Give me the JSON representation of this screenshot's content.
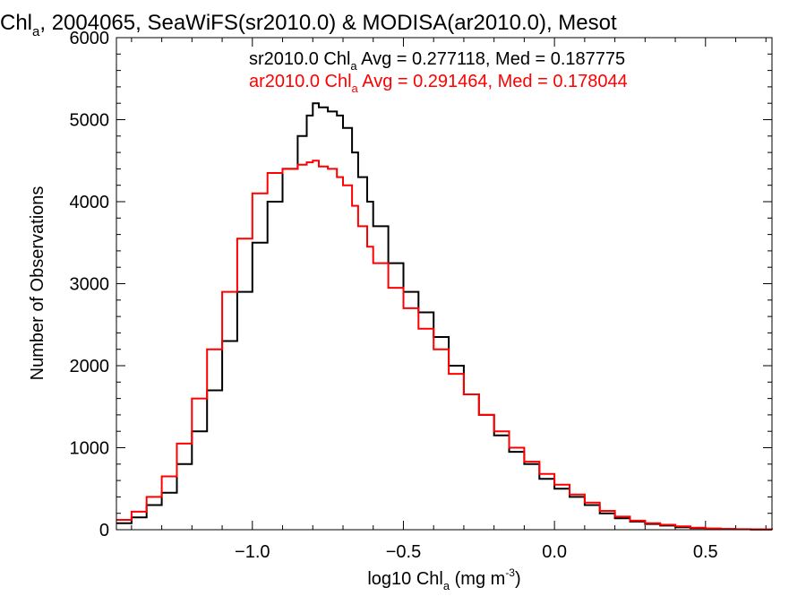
{
  "chart_data": {
    "type": "line",
    "title_main": "Chl",
    "title_sub": "a",
    "title_rest": ", 2004065, SeaWiFS(sr2010.0) & MODISA(ar2010.0), Mesot",
    "xlabel_main": "log10 Chl",
    "xlabel_sub": "a",
    "xlabel_units": " (mg m",
    "xlabel_sup": "-3",
    "xlabel_close": ")",
    "ylabel": "Number of Observations",
    "xlim": [
      -1.45,
      0.72
    ],
    "ylim": [
      0,
      6000
    ],
    "x_ticks": [
      -1.0,
      -0.5,
      0.0,
      0.5
    ],
    "x_tick_labels": [
      "−1.0",
      "−0.5",
      "0.0",
      "0.5"
    ],
    "y_ticks": [
      0,
      1000,
      2000,
      3000,
      4000,
      5000,
      6000
    ],
    "y_tick_labels": [
      "0",
      "1000",
      "2000",
      "3000",
      "4000",
      "5000",
      "6000"
    ],
    "series": [
      {
        "legend_main": "sr2010.0 Chl",
        "legend_sub": "a",
        "legend_rest": " Avg = 0.277118, Med = 0.187775",
        "color": "#000000",
        "x": [
          -1.45,
          -1.4,
          -1.35,
          -1.3,
          -1.25,
          -1.2,
          -1.15,
          -1.1,
          -1.05,
          -1.0,
          -0.95,
          -0.9,
          -0.85,
          -0.82,
          -0.8,
          -0.78,
          -0.75,
          -0.72,
          -0.7,
          -0.67,
          -0.65,
          -0.62,
          -0.6,
          -0.55,
          -0.5,
          -0.45,
          -0.4,
          -0.35,
          -0.3,
          -0.25,
          -0.2,
          -0.15,
          -0.1,
          -0.05,
          0.0,
          0.05,
          0.1,
          0.15,
          0.2,
          0.25,
          0.3,
          0.35,
          0.4,
          0.45,
          0.5,
          0.55,
          0.6,
          0.65,
          0.72
        ],
        "values": [
          80,
          150,
          300,
          450,
          800,
          1200,
          1700,
          2300,
          2900,
          3500,
          4000,
          4400,
          4800,
          5050,
          5200,
          5150,
          5100,
          5050,
          4900,
          4600,
          4300,
          4000,
          3700,
          3250,
          2900,
          2650,
          2350,
          2000,
          1650,
          1400,
          1150,
          950,
          800,
          620,
          500,
          400,
          300,
          200,
          140,
          100,
          70,
          50,
          30,
          20,
          12,
          8,
          5,
          3,
          2
        ]
      },
      {
        "legend_main": "ar2010.0 Chl",
        "legend_sub": "a",
        "legend_rest": " Avg = 0.291464, Med = 0.178044",
        "color": "#ff0000",
        "x": [
          -1.45,
          -1.4,
          -1.35,
          -1.3,
          -1.25,
          -1.2,
          -1.15,
          -1.1,
          -1.05,
          -1.0,
          -0.95,
          -0.9,
          -0.85,
          -0.82,
          -0.8,
          -0.78,
          -0.75,
          -0.72,
          -0.7,
          -0.67,
          -0.65,
          -0.62,
          -0.6,
          -0.55,
          -0.5,
          -0.45,
          -0.4,
          -0.35,
          -0.3,
          -0.25,
          -0.2,
          -0.15,
          -0.1,
          -0.05,
          0.0,
          0.05,
          0.1,
          0.15,
          0.2,
          0.25,
          0.3,
          0.35,
          0.4,
          0.45,
          0.5,
          0.55,
          0.6,
          0.65,
          0.72
        ],
        "values": [
          120,
          220,
          400,
          650,
          1050,
          1600,
          2200,
          2900,
          3550,
          4100,
          4350,
          4400,
          4450,
          4480,
          4500,
          4430,
          4400,
          4300,
          4200,
          3950,
          3700,
          3450,
          3250,
          2950,
          2700,
          2450,
          2200,
          1900,
          1650,
          1400,
          1200,
          1000,
          830,
          680,
          550,
          430,
          330,
          230,
          160,
          110,
          80,
          60,
          40,
          25,
          15,
          10,
          7,
          4,
          2
        ]
      }
    ]
  }
}
